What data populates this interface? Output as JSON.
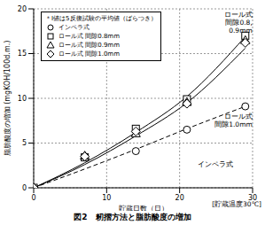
{
  "chart_data": {
    "type": "scatter",
    "title": "図2　籾摺方法と脂肪酸度の増加",
    "x_label": "貯蔵日数（日）",
    "y_label": "脂肪酸度の増加 (mgKOH/100d.m.)",
    "note": "＊I値は5反復試験の平均値（ばらつき）",
    "condition": "[貯蔵温度30℃]",
    "xlim": [
      0,
      30
    ],
    "xticks": [
      0,
      10,
      20,
      30
    ],
    "ylim": [
      0,
      20
    ],
    "yticks": [
      0,
      5,
      10,
      15,
      20
    ],
    "grid": true,
    "legend": "upper left",
    "x": [
      0,
      7,
      14,
      21,
      29
    ],
    "series": [
      {
        "name": "インペラ式",
        "marker": "circle",
        "color": "#000000",
        "values": [
          0,
          3.5,
          4.1,
          6.5,
          9.1
        ]
      },
      {
        "name": "ロール式 間隙0.8mm",
        "marker": "square",
        "color": "#000000",
        "values": [
          0,
          3.4,
          6.6,
          9.9,
          17.0
        ]
      },
      {
        "name": "ロール式 間隙0.9mm",
        "marker": "triangle",
        "color": "#000000",
        "values": [
          0,
          3.6,
          6.1,
          9.6,
          16.5
        ]
      },
      {
        "name": "ロール式 間隙1.0mm",
        "marker": "diamond",
        "color": "#000000",
        "values": [
          0,
          3.5,
          6.3,
          9.4,
          16.2
        ]
      }
    ],
    "fit_lines": [
      {
        "label": "ロール式 間隙0.8, 0.9mm",
        "line_style": "solid",
        "color": "#000000",
        "values": [
          0,
          2.8,
          6.2,
          10.2,
          16.9
        ]
      },
      {
        "label": "ロール式 間隙1.0mm",
        "line_style": "solid",
        "color": "#000000",
        "values": [
          0,
          2.6,
          5.8,
          9.5,
          15.6
        ]
      },
      {
        "label": "インペラ式",
        "line_style": "dashed",
        "color": "#000000",
        "values": [
          0,
          2.1,
          4.3,
          6.6,
          9.1
        ]
      }
    ]
  }
}
